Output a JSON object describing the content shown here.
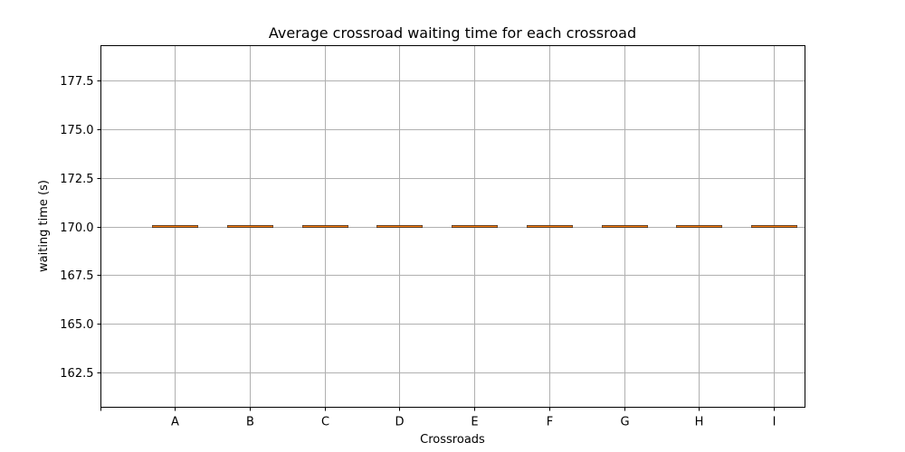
{
  "chart_data": {
    "type": "box",
    "title": "Average crossroad waiting time for each crossroad",
    "xlabel": "Crossroads",
    "ylabel": "waiting time (s)",
    "categories": [
      "A",
      "B",
      "C",
      "D",
      "E",
      "F",
      "G",
      "H",
      "I"
    ],
    "values": [
      170.0,
      170.0,
      170.0,
      170.0,
      170.0,
      170.0,
      170.0,
      170.0,
      170.0
    ],
    "ylim": [
      160.7,
      179.3
    ],
    "yticks": [
      "162.5",
      "165.0",
      "167.5",
      "170.0",
      "172.5",
      "175.0",
      "177.5"
    ],
    "grid": true,
    "colors": {
      "median": "#ff7f0e",
      "box": "#000000",
      "grid": "#b0b0b0"
    }
  }
}
